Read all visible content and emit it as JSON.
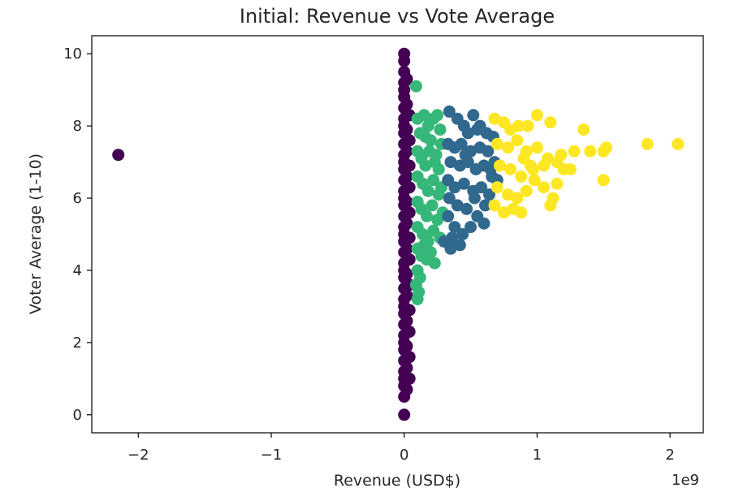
{
  "chart_data": {
    "type": "scatter",
    "title": "Initial: Revenue vs Vote Average",
    "xlabel": "Revenue (USD$)",
    "ylabel": "Voter Average (1-10)",
    "x_offset_text": "1e9",
    "xlim": [
      -2.35,
      2.25
    ],
    "ylim": [
      -0.5,
      10.5
    ],
    "x_ticks": [
      -2,
      -1,
      0,
      1,
      2
    ],
    "x_tick_labels": [
      "−2",
      "−1",
      "0",
      "1",
      "2"
    ],
    "y_ticks": [
      0,
      2,
      4,
      6,
      8,
      10
    ],
    "y_tick_labels": [
      "0",
      "2",
      "4",
      "6",
      "8",
      "10"
    ],
    "x_unit_scale": 1000000000,
    "grid": false,
    "legend": "none",
    "clusters": [
      {
        "color": "#440154",
        "points": [
          [
            -2.15,
            7.2
          ],
          [
            0.0,
            10.0
          ],
          [
            0.0,
            9.8
          ],
          [
            0.0,
            9.5
          ],
          [
            0.0,
            9.2
          ],
          [
            0.0,
            9.0
          ],
          [
            0.0,
            8.8
          ],
          [
            0.0,
            8.5
          ],
          [
            0.0,
            8.2
          ],
          [
            0.0,
            8.0
          ],
          [
            0.0,
            7.8
          ],
          [
            0.0,
            7.5
          ],
          [
            0.0,
            7.2
          ],
          [
            0.0,
            7.0
          ],
          [
            0.0,
            6.8
          ],
          [
            0.0,
            6.5
          ],
          [
            0.0,
            6.2
          ],
          [
            0.0,
            6.0
          ],
          [
            0.0,
            5.8
          ],
          [
            0.0,
            5.5
          ],
          [
            0.0,
            5.2
          ],
          [
            0.0,
            5.0
          ],
          [
            0.0,
            4.8
          ],
          [
            0.0,
            4.5
          ],
          [
            0.0,
            4.2
          ],
          [
            0.0,
            4.0
          ],
          [
            0.0,
            3.8
          ],
          [
            0.0,
            3.5
          ],
          [
            0.0,
            3.2
          ],
          [
            0.0,
            3.0
          ],
          [
            0.0,
            2.8
          ],
          [
            0.0,
            2.5
          ],
          [
            0.0,
            2.2
          ],
          [
            0.0,
            2.0
          ],
          [
            0.0,
            1.8
          ],
          [
            0.0,
            1.5
          ],
          [
            0.0,
            1.2
          ],
          [
            0.0,
            1.0
          ],
          [
            0.0,
            0.8
          ],
          [
            0.0,
            0.5
          ],
          [
            0.0,
            0.0
          ],
          [
            0.02,
            9.3
          ],
          [
            0.02,
            8.6
          ],
          [
            0.02,
            7.9
          ],
          [
            0.02,
            7.3
          ],
          [
            0.02,
            6.6
          ],
          [
            0.02,
            5.9
          ],
          [
            0.02,
            5.3
          ],
          [
            0.02,
            4.6
          ],
          [
            0.02,
            3.9
          ],
          [
            0.02,
            3.3
          ],
          [
            0.02,
            2.6
          ],
          [
            0.02,
            1.9
          ],
          [
            0.02,
            1.3
          ],
          [
            0.02,
            0.7
          ],
          [
            0.04,
            8.3
          ],
          [
            0.04,
            7.6
          ],
          [
            0.04,
            6.9
          ],
          [
            0.04,
            6.3
          ],
          [
            0.04,
            5.6
          ],
          [
            0.04,
            4.9
          ],
          [
            0.04,
            4.3
          ],
          [
            0.04,
            3.6
          ],
          [
            0.04,
            2.9
          ],
          [
            0.04,
            2.3
          ],
          [
            0.04,
            1.6
          ],
          [
            0.04,
            1.0
          ]
        ]
      },
      {
        "color": "#35b779",
        "points": [
          [
            0.09,
            9.1
          ],
          [
            0.1,
            8.2
          ],
          [
            0.12,
            7.8
          ],
          [
            0.15,
            8.3
          ],
          [
            0.18,
            8.0
          ],
          [
            0.2,
            7.6
          ],
          [
            0.22,
            8.2
          ],
          [
            0.25,
            8.3
          ],
          [
            0.27,
            7.9
          ],
          [
            0.1,
            7.3
          ],
          [
            0.13,
            7.1
          ],
          [
            0.16,
            6.9
          ],
          [
            0.19,
            7.3
          ],
          [
            0.23,
            7.0
          ],
          [
            0.26,
            6.8
          ],
          [
            0.1,
            6.6
          ],
          [
            0.14,
            6.4
          ],
          [
            0.18,
            6.2
          ],
          [
            0.22,
            6.5
          ],
          [
            0.26,
            6.1
          ],
          [
            0.1,
            5.9
          ],
          [
            0.13,
            5.7
          ],
          [
            0.17,
            5.5
          ],
          [
            0.21,
            5.8
          ],
          [
            0.25,
            5.4
          ],
          [
            0.1,
            5.2
          ],
          [
            0.14,
            5.0
          ],
          [
            0.18,
            4.8
          ],
          [
            0.22,
            5.1
          ],
          [
            0.27,
            4.9
          ],
          [
            0.1,
            4.6
          ],
          [
            0.13,
            4.4
          ],
          [
            0.17,
            4.3
          ],
          [
            0.23,
            4.2
          ],
          [
            0.1,
            4.0
          ],
          [
            0.12,
            3.8
          ],
          [
            0.09,
            3.6
          ],
          [
            0.11,
            3.4
          ],
          [
            0.1,
            3.2
          ],
          [
            0.15,
            4.7
          ],
          [
            0.2,
            4.5
          ],
          [
            0.28,
            7.5
          ],
          [
            0.28,
            6.3
          ],
          [
            0.29,
            5.6
          ],
          [
            0.16,
            7.7
          ],
          [
            0.24,
            7.2
          ]
        ]
      },
      {
        "color": "#31688e",
        "points": [
          [
            0.34,
            8.4
          ],
          [
            0.4,
            8.2
          ],
          [
            0.45,
            8.0
          ],
          [
            0.48,
            7.8
          ],
          [
            0.55,
            7.9
          ],
          [
            0.62,
            7.8
          ],
          [
            0.67,
            7.7
          ],
          [
            0.33,
            7.5
          ],
          [
            0.38,
            7.4
          ],
          [
            0.43,
            7.5
          ],
          [
            0.5,
            7.3
          ],
          [
            0.57,
            7.4
          ],
          [
            0.63,
            7.3
          ],
          [
            0.68,
            7.0
          ],
          [
            0.35,
            7.0
          ],
          [
            0.42,
            6.9
          ],
          [
            0.48,
            7.0
          ],
          [
            0.54,
            6.8
          ],
          [
            0.6,
            6.9
          ],
          [
            0.66,
            6.6
          ],
          [
            0.33,
            6.5
          ],
          [
            0.38,
            6.3
          ],
          [
            0.45,
            6.4
          ],
          [
            0.52,
            6.2
          ],
          [
            0.58,
            6.3
          ],
          [
            0.64,
            6.1
          ],
          [
            0.34,
            6.0
          ],
          [
            0.4,
            5.8
          ],
          [
            0.47,
            5.7
          ],
          [
            0.55,
            5.5
          ],
          [
            0.6,
            5.3
          ],
          [
            0.33,
            5.5
          ],
          [
            0.38,
            5.2
          ],
          [
            0.44,
            5.0
          ],
          [
            0.5,
            5.2
          ],
          [
            0.36,
            4.9
          ],
          [
            0.42,
            4.7
          ],
          [
            0.3,
            4.8
          ],
          [
            0.35,
            4.6
          ],
          [
            0.52,
            8.3
          ],
          [
            0.57,
            8.0
          ],
          [
            0.65,
            6.8
          ],
          [
            0.7,
            6.5
          ],
          [
            0.46,
            7.2
          ],
          [
            0.53,
            6.0
          ],
          [
            0.61,
            5.8
          ]
        ]
      },
      {
        "color": "#fde725",
        "points": [
          [
            0.68,
            8.2
          ],
          [
            0.75,
            8.1
          ],
          [
            0.8,
            7.9
          ],
          [
            0.86,
            8.0
          ],
          [
            0.93,
            8.0
          ],
          [
            1.0,
            8.3
          ],
          [
            1.1,
            8.1
          ],
          [
            1.35,
            7.9
          ],
          [
            0.7,
            7.5
          ],
          [
            0.78,
            7.4
          ],
          [
            0.85,
            7.6
          ],
          [
            0.92,
            7.3
          ],
          [
            1.0,
            7.4
          ],
          [
            1.08,
            7.1
          ],
          [
            1.15,
            7.0
          ],
          [
            1.28,
            7.3
          ],
          [
            1.4,
            7.3
          ],
          [
            1.5,
            7.3
          ],
          [
            1.52,
            7.4
          ],
          [
            1.83,
            7.5
          ],
          [
            2.06,
            7.5
          ],
          [
            0.72,
            6.9
          ],
          [
            0.8,
            6.8
          ],
          [
            0.88,
            6.6
          ],
          [
            0.97,
            6.8
          ],
          [
            1.05,
            6.9
          ],
          [
            1.2,
            6.8
          ],
          [
            1.25,
            6.8
          ],
          [
            0.7,
            6.3
          ],
          [
            0.78,
            6.1
          ],
          [
            0.85,
            6.0
          ],
          [
            0.92,
            6.2
          ],
          [
            1.05,
            6.3
          ],
          [
            1.12,
            6.0
          ],
          [
            1.5,
            6.5
          ],
          [
            0.68,
            5.8
          ],
          [
            0.75,
            5.6
          ],
          [
            0.82,
            5.7
          ],
          [
            0.88,
            5.6
          ],
          [
            1.1,
            5.8
          ],
          [
            0.95,
            6.9
          ],
          [
            1.15,
            6.4
          ],
          [
            0.9,
            7.1
          ],
          [
            1.18,
            7.2
          ],
          [
            0.98,
            6.5
          ]
        ]
      }
    ]
  }
}
